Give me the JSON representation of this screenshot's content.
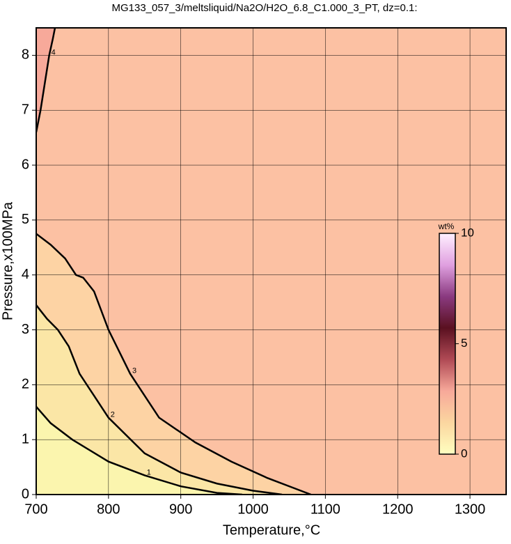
{
  "chart_data": {
    "type": "contour",
    "title": "MG133_057_3/meltsliquid/Na2O/H2O_6.8_C1.000_3_PT, dz=0.1:",
    "x_label": "Temperature,°C",
    "y_label": "Pressure,x100MPa",
    "xlim": [
      700,
      1350
    ],
    "ylim": [
      0,
      8.5
    ],
    "xticks": [
      700,
      800,
      900,
      1000,
      1100,
      1200,
      1300
    ],
    "yticks": [
      0,
      1,
      2,
      3,
      4,
      5,
      6,
      7,
      8
    ],
    "grid": true,
    "background": "#fcc1a3",
    "contours": [
      {
        "level": 4,
        "color": "#000000",
        "fill": "#f7a99a",
        "x": [
          700,
          706,
          712,
          718,
          723,
          726
        ],
        "y": [
          6.6,
          7.0,
          7.5,
          8.0,
          8.3,
          8.5
        ]
      },
      {
        "level": 3,
        "color": "#000000",
        "fill": "#fdd3a4",
        "x": [
          700,
          720,
          740,
          755,
          765,
          780,
          800,
          830,
          870,
          920,
          970,
          1020,
          1060,
          1080
        ],
        "y": [
          4.75,
          4.55,
          4.3,
          4.0,
          3.95,
          3.7,
          3.0,
          2.2,
          1.4,
          0.95,
          0.6,
          0.3,
          0.1,
          0
        ]
      },
      {
        "level": 2,
        "color": "#000000",
        "fill": "#fbe6a6",
        "x": [
          700,
          715,
          730,
          745,
          760,
          780,
          800,
          850,
          900,
          950,
          1000,
          1040
        ],
        "y": [
          3.45,
          3.2,
          3.0,
          2.7,
          2.2,
          1.8,
          1.4,
          0.75,
          0.4,
          0.2,
          0.07,
          0
        ]
      },
      {
        "level": 1,
        "color": "#000000",
        "fill": "#fbf5ae",
        "x": [
          700,
          720,
          750,
          800,
          850,
          900,
          950,
          985
        ],
        "y": [
          1.6,
          1.3,
          1.0,
          0.6,
          0.35,
          0.15,
          0.03,
          0
        ]
      }
    ],
    "colorbar": {
      "label": "wt%",
      "lim": [
        0,
        10
      ],
      "ticks": [
        0,
        5,
        10
      ],
      "colors": [
        "#ffffc0",
        "#fbd6a0",
        "#f7a99a",
        "#b04a55",
        "#5a1020",
        "#8a3a80",
        "#e0a0e0",
        "#fff0ff"
      ]
    }
  }
}
